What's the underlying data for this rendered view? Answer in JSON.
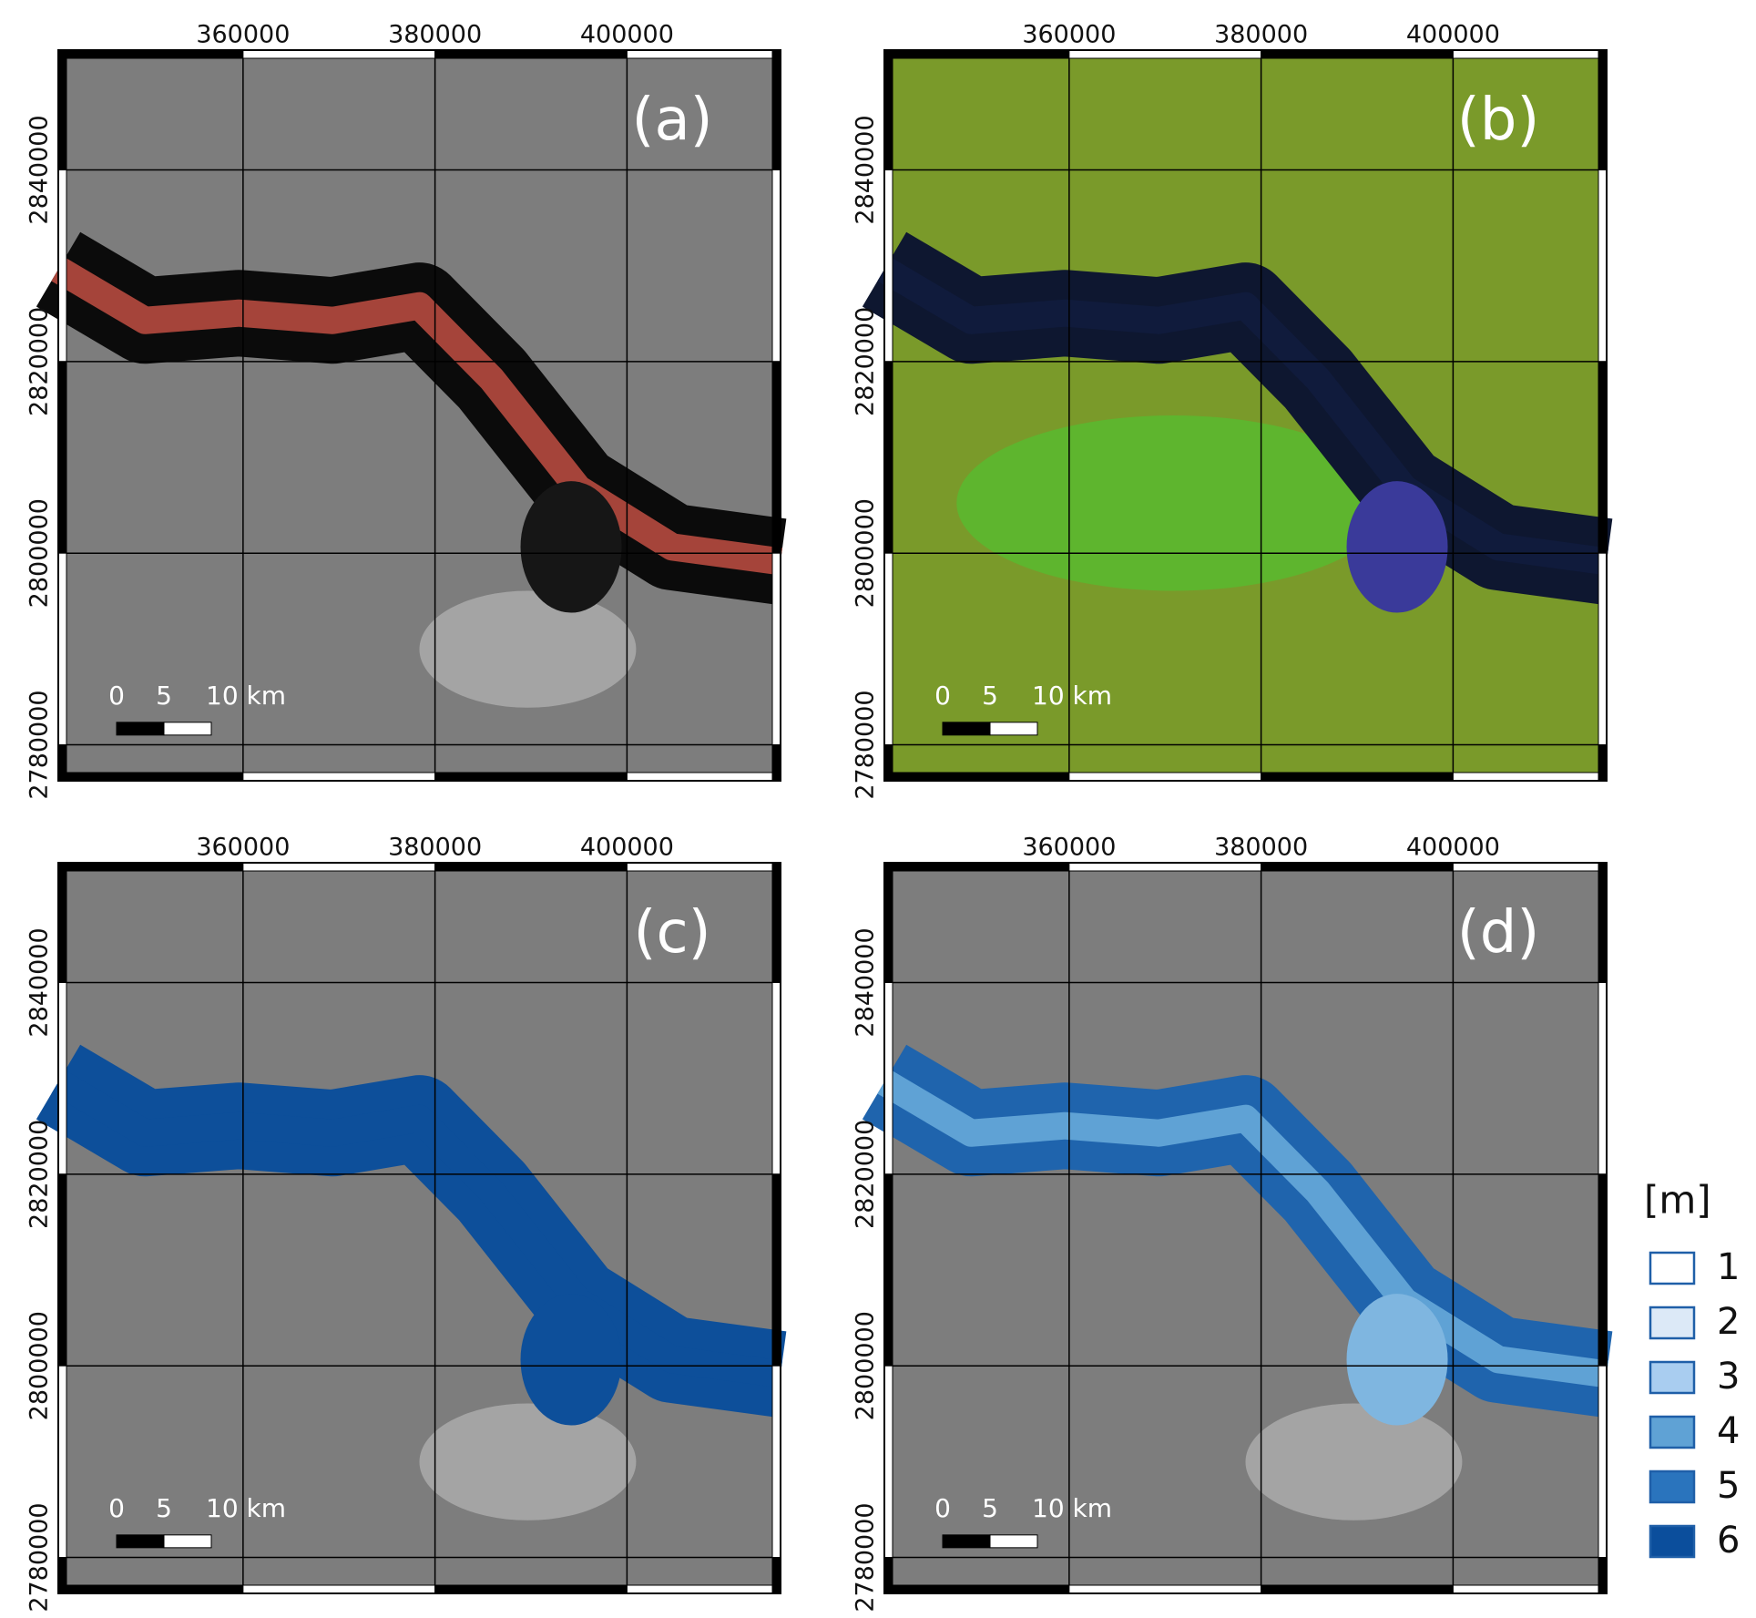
{
  "map": {
    "x_axis": {
      "lim": [
        340750,
        416000
      ],
      "ticks": [
        360000,
        380000,
        400000
      ]
    },
    "y_axis": {
      "lim": [
        2776250,
        2852500
      ],
      "ticks": [
        2840000,
        2820000,
        2800000,
        2780000
      ]
    },
    "panels": [
      {
        "label": "(a)"
      },
      {
        "label": "(b)"
      },
      {
        "label": "(c)"
      },
      {
        "label": "(d)"
      }
    ],
    "scale_bar": {
      "labels": [
        "0",
        "5",
        "10 km"
      ]
    },
    "legend": {
      "title": "[m]",
      "items": [
        {
          "label": "1",
          "color": "#ffffff"
        },
        {
          "label": "2",
          "color": "#dce9f7"
        },
        {
          "label": "3",
          "color": "#a9cdf0"
        },
        {
          "label": "4",
          "color": "#5fa2d5"
        },
        {
          "label": "5",
          "color": "#2a74bd"
        },
        {
          "label": "6",
          "color": "#0b4e9c"
        }
      ]
    }
  }
}
